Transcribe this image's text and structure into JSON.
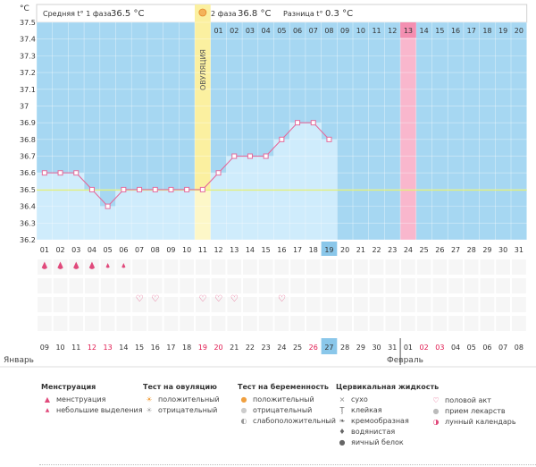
{
  "header": {
    "phase1_label": "Средняя t° 1 фаза",
    "phase1_value": "36.5 °C",
    "phase2_label": "2 фаза",
    "phase2_value": "36.8 °C",
    "diff_label": "Разница t°",
    "diff_value": "0.3 °C"
  },
  "unit_label": "°C",
  "ovulation_label": "ОВУЛЯЦИЯ",
  "months": {
    "left": "Январь",
    "right": "Февраль"
  },
  "chart_data": {
    "type": "line",
    "ylim": [
      36.2,
      37.5
    ],
    "yticks": [
      "36.2",
      "36.3",
      "36.4",
      "36.5",
      "36.6",
      "36.7",
      "36.8",
      "36.9",
      "37",
      "37.1",
      "37.2",
      "37.3",
      "37.4",
      "37.5"
    ],
    "cycle_days": [
      "01",
      "02",
      "03",
      "04",
      "05",
      "06",
      "07",
      "08",
      "09",
      "10",
      "11",
      "12",
      "13",
      "14",
      "15",
      "16",
      "17",
      "18",
      "19",
      "20",
      "21",
      "22",
      "23",
      "24",
      "25",
      "26",
      "27",
      "28",
      "29",
      "30",
      "31"
    ],
    "values": [
      36.6,
      36.6,
      36.6,
      36.5,
      36.4,
      36.5,
      36.5,
      36.5,
      36.5,
      36.5,
      36.5,
      36.6,
      36.7,
      36.7,
      36.7,
      36.8,
      36.9,
      36.9,
      36.8
    ],
    "ovulation_day": 11,
    "current_day": 19,
    "predicted_menstruation_day": 24,
    "coverline": 36.5,
    "second_phase_days": [
      "01",
      "02",
      "03",
      "04",
      "05",
      "06",
      "07",
      "08",
      "09",
      "10",
      "11",
      "12",
      "13",
      "14",
      "15",
      "16",
      "17",
      "18",
      "19",
      "20"
    ],
    "highlighted_second_phase_day": "13",
    "calendar_days": [
      "09",
      "10",
      "11",
      "12",
      "13",
      "14",
      "15",
      "16",
      "17",
      "18",
      "19",
      "20",
      "21",
      "22",
      "23",
      "24",
      "25",
      "26",
      "27",
      "28",
      "29",
      "30",
      "31",
      "01",
      "02",
      "03",
      "04",
      "05",
      "06",
      "07",
      "08"
    ],
    "red_calendar_days": [
      "12",
      "13",
      "19",
      "20",
      "26",
      "02",
      "03"
    ],
    "today_calendar_day": "27",
    "menstruation_marks": [
      1,
      2,
      3,
      4,
      5,
      6
    ],
    "small_menstruation_marks": [
      5,
      6
    ],
    "intercourse_marks": [
      7,
      8,
      11,
      12,
      13,
      16
    ],
    "colors": {
      "sky": "#a6d7f2",
      "fill": "#cfecfc",
      "line": "#e46b9c",
      "ovulation": "#fbf0a0",
      "menstruation": "#f9b7cd",
      "coverline": "#e2f07a",
      "today": "#8ac7ea"
    }
  },
  "legend": {
    "menstruation": {
      "title": "Менструация",
      "items": [
        "менструация",
        "небольшие выделения"
      ]
    },
    "ovulation_test": {
      "title": "Тест на овуляцию",
      "items": [
        "положительный",
        "отрицательный"
      ]
    },
    "pregnancy_test": {
      "title": "Тест на беременность",
      "items": [
        "положительный",
        "отрицательный",
        "слабоположительный"
      ]
    },
    "cervical": {
      "title": "Цервикальная жидкость",
      "items": [
        "сухо",
        "клейкая",
        "кремообразная",
        "водянистая",
        "яичный белок"
      ]
    },
    "other": {
      "items": [
        "половой акт",
        "прием лекарств",
        "лунный календарь"
      ]
    }
  }
}
